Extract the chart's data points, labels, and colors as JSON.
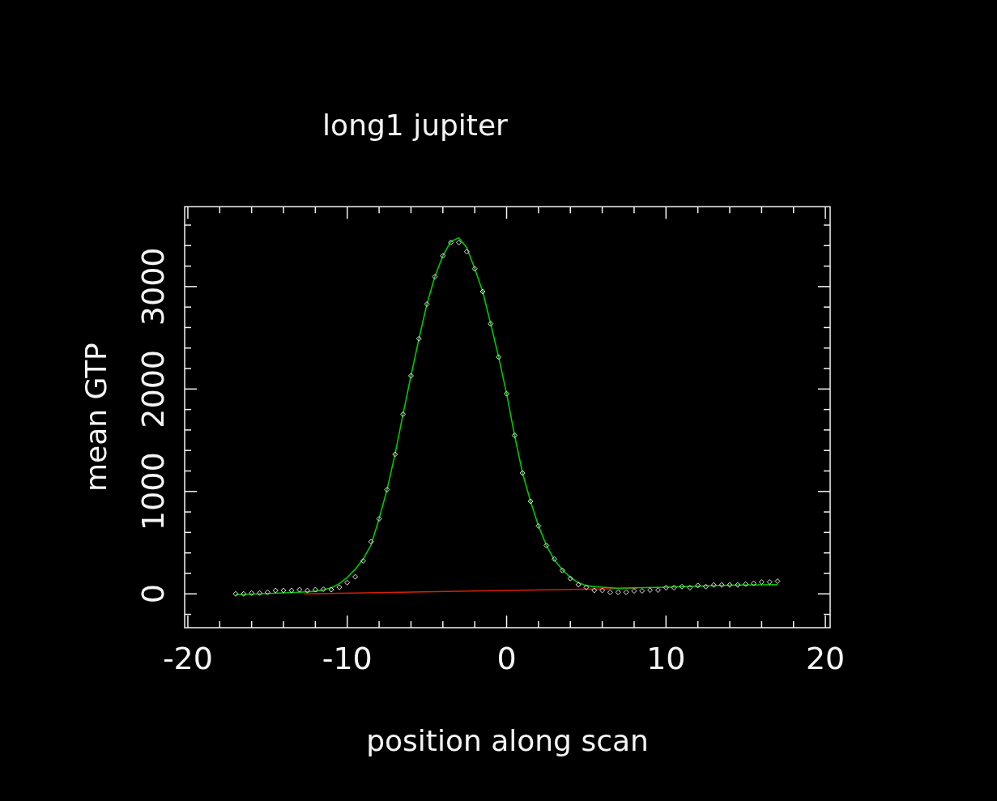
{
  "chart_data": {
    "type": "scatter",
    "title": "long1 jupiter",
    "xlabel": "position along scan",
    "ylabel": "mean GTP",
    "xlim": [
      -20.2,
      20.3
    ],
    "xticks": [
      -20,
      {
        "value": -18,
        "label": null
      },
      {
        "value": -16,
        "label": null
      },
      {
        "value": -14,
        "label": null
      },
      {
        "value": -12,
        "label": null
      },
      -10,
      {
        "value": -8,
        "label": null
      },
      {
        "value": -6,
        "label": null
      },
      {
        "value": -4,
        "label": null
      },
      {
        "value": -2,
        "label": null
      },
      0,
      {
        "value": 2,
        "label": null
      },
      {
        "value": 4,
        "label": null
      },
      {
        "value": 6,
        "label": null
      },
      {
        "value": 8,
        "label": null
      },
      10,
      {
        "value": 12,
        "label": null
      },
      {
        "value": 14,
        "label": null
      },
      {
        "value": 16,
        "label": null
      },
      {
        "value": 18,
        "label": null
      },
      20
    ],
    "ylim": [
      -330,
      3780
    ],
    "yticks": [
      {
        "value": -200,
        "label": null
      },
      0,
      {
        "value": 200,
        "label": null
      },
      {
        "value": 400,
        "label": null
      },
      {
        "value": 600,
        "label": null
      },
      {
        "value": 800,
        "label": null
      },
      1000,
      {
        "value": 1200,
        "label": null
      },
      {
        "value": 1400,
        "label": null
      },
      {
        "value": 1600,
        "label": null
      },
      {
        "value": 1800,
        "label": null
      },
      2000,
      {
        "value": 2200,
        "label": null
      },
      {
        "value": 2400,
        "label": null
      },
      {
        "value": 2600,
        "label": null
      },
      {
        "value": 2800,
        "label": null
      },
      3000,
      {
        "value": 3200,
        "label": null
      },
      {
        "value": 3400,
        "label": null
      },
      {
        "value": 3600,
        "label": null
      }
    ],
    "grid": false,
    "legend": false,
    "series": [
      {
        "type": "scatter",
        "marker": "diamond",
        "color": "#e8e8e8",
        "x": [
          -17,
          -16.5,
          -16,
          -15.5,
          -15,
          -14.5,
          -14,
          -13.5,
          -13,
          -12.5,
          -12,
          -11.5,
          -11,
          -10.5,
          -10,
          -9.5,
          -9,
          -8.5,
          -8,
          -7.5,
          -7,
          -6.5,
          -6,
          -5.5,
          -5,
          -4.5,
          -4,
          -3.5,
          -3,
          -2.5,
          -2,
          -1.5,
          -1,
          -0.5,
          0,
          0.5,
          1,
          1.5,
          2,
          2.5,
          3,
          3.5,
          4,
          4.5,
          5,
          5.5,
          6,
          6.5,
          7,
          7.5,
          8,
          8.5,
          9,
          9.5,
          10,
          10.5,
          11,
          11.5,
          12,
          12.5,
          13,
          13.5,
          14,
          14.5,
          15,
          15.5,
          16,
          16.5,
          17
        ],
        "values": [
          0,
          0,
          8,
          8,
          16,
          33,
          33,
          33,
          41,
          33,
          41,
          45,
          41,
          65,
          110,
          167,
          322,
          509,
          733,
          1018,
          1363,
          1754,
          2129,
          2491,
          2829,
          3097,
          3301,
          3431,
          3431,
          3341,
          3175,
          2951,
          2637,
          2312,
          1954,
          1547,
          1180,
          904,
          663,
          472,
          340,
          229,
          150,
          90,
          63,
          34,
          34,
          16,
          16,
          16,
          29,
          29,
          37,
          37,
          61,
          61,
          71,
          61,
          82,
          71,
          87,
          87,
          87,
          87,
          95,
          103,
          116,
          116,
          124
        ]
      },
      {
        "type": "line",
        "marker": "none",
        "color": "#00c800",
        "x": [
          -17,
          -15.5,
          -14,
          -12.5,
          -12,
          -11.5,
          -11,
          -10.5,
          -10,
          -9.5,
          -9,
          -8.5,
          -8,
          -7.5,
          -7,
          -6.5,
          -6,
          -5.5,
          -5,
          -4.5,
          -4,
          -3.5,
          -3,
          -2.5,
          -2,
          -1.5,
          -1,
          -0.5,
          0,
          0.5,
          1,
          1.5,
          2,
          2.5,
          3,
          3.5,
          4,
          4.5,
          5,
          5.5,
          6,
          7,
          8,
          10,
          12,
          14,
          17
        ],
        "values": [
          -8,
          0,
          10,
          20,
          25,
          40,
          60,
          100,
          160,
          240,
          340,
          480,
          733,
          1018,
          1363,
          1754,
          2129,
          2491,
          2829,
          3097,
          3301,
          3440,
          3476,
          3380,
          3175,
          2951,
          2637,
          2312,
          1954,
          1547,
          1180,
          904,
          663,
          472,
          330,
          235,
          160,
          110,
          80,
          70,
          65,
          55,
          60,
          65,
          75,
          85,
          90
        ]
      },
      {
        "type": "line",
        "marker": "none",
        "color": "#d82000",
        "x": [
          -12.7,
          8.2
        ],
        "values": [
          0,
          55
        ]
      }
    ]
  }
}
